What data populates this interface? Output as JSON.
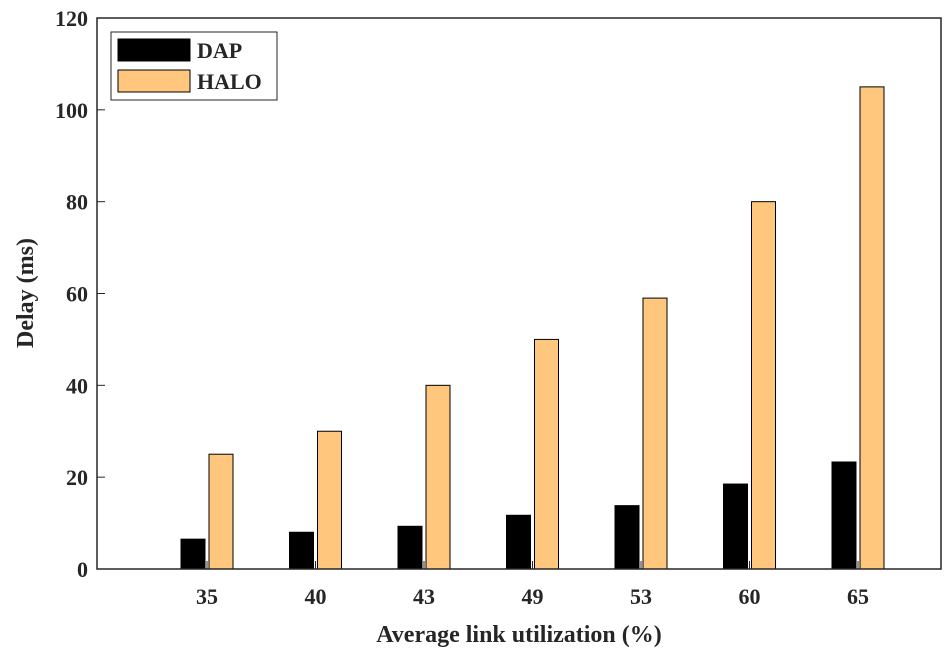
{
  "chart_data": {
    "type": "bar",
    "title": "",
    "xlabel": "Average link utilization (%)",
    "ylabel": "Delay (ms)",
    "categories": [
      "35",
      "40",
      "43",
      "49",
      "53",
      "60",
      "65"
    ],
    "series": [
      {
        "name": "DAP",
        "color": "#000000",
        "values": [
          6.5,
          8,
          9.3,
          11.7,
          13.8,
          18.5,
          23.3
        ]
      },
      {
        "name": "HALO",
        "color": "#FFC67D",
        "values": [
          25,
          30,
          40,
          50,
          59,
          80,
          105
        ]
      }
    ],
    "ylim": [
      0,
      120
    ],
    "yticks": [
      "0",
      "20",
      "40",
      "60",
      "80",
      "100",
      "120"
    ],
    "grid": false,
    "legend_position": "top-left"
  }
}
